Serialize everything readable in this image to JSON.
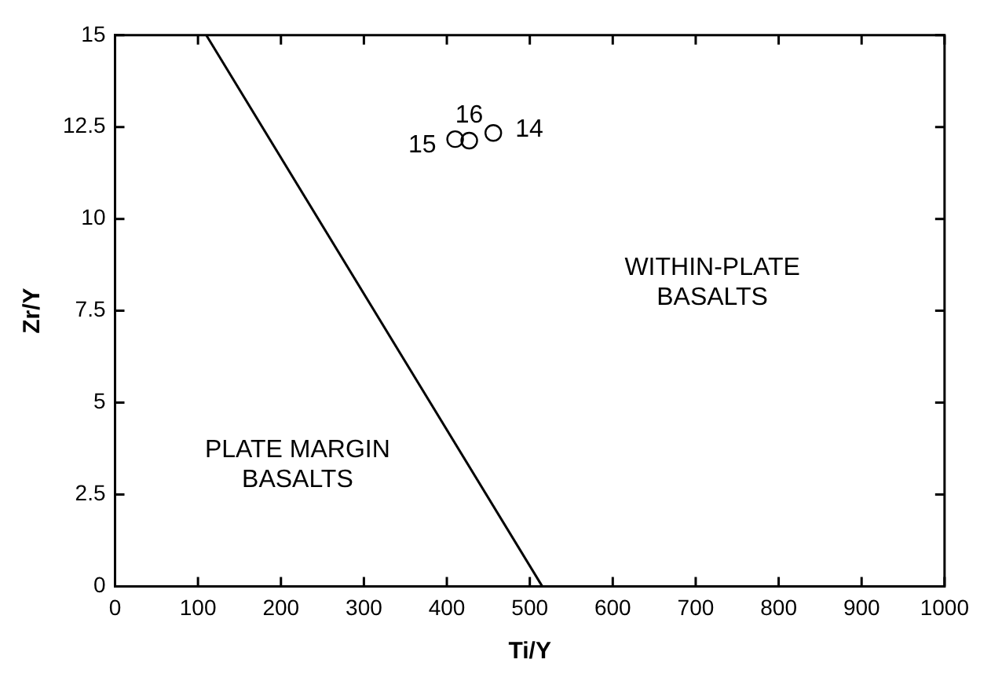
{
  "chart_data": {
    "type": "scatter",
    "xlabel": "Ti/Y",
    "ylabel": "Zr/Y",
    "xlim": [
      0,
      1000
    ],
    "xticks": [
      0,
      100,
      200,
      300,
      400,
      500,
      600,
      700,
      800,
      900,
      1000
    ],
    "ylim": [
      0,
      15
    ],
    "yticks": [
      0,
      2.5,
      5,
      7.5,
      10,
      12.5,
      15
    ],
    "grid": false,
    "legend": false,
    "marker": "circle",
    "series": [
      {
        "color": "#000000",
        "x": [
          410,
          427,
          456
        ],
        "values": [
          12.17,
          12.13,
          12.34
        ]
      },
      {
        "type": "line",
        "color": "#000000",
        "x": [
          110,
          515
        ],
        "values": [
          15,
          0
        ],
        "line_style": "solid",
        "marker": "none"
      }
    ],
    "annotations": [
      {
        "text": "15",
        "x": 410,
        "y": 12.17
      },
      {
        "text": "16",
        "x": 427,
        "y": 12.13
      },
      {
        "text": "14",
        "x": 456,
        "y": 12.34
      },
      "PLATE MARGIN\nBASALTS",
      "WITHIN-PLATE\nBASALTS"
    ]
  }
}
